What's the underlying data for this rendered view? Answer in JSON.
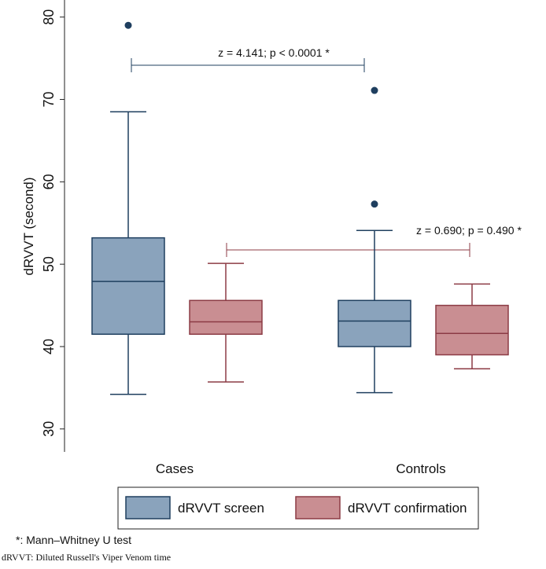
{
  "chart_data": {
    "type": "box",
    "y_label": "dRVVT (second)",
    "categories": [
      "Cases",
      "Controls"
    ],
    "ylim": [
      27.5,
      81.5
    ],
    "yticks": [
      30,
      40,
      50,
      60,
      70,
      80
    ],
    "grid": false,
    "series": [
      {
        "name": "dRVVT screen",
        "color": "#8aa3bc",
        "edge": "#1f3f5f",
        "boxes": [
          {
            "min": 34.2,
            "q1": 41.5,
            "median": 47.9,
            "q3": 53.2,
            "max": 68.5,
            "outliers": [
              79.0
            ]
          },
          {
            "min": 34.4,
            "q1": 40.0,
            "median": 43.1,
            "q3": 45.6,
            "max": 54.1,
            "outliers": [
              71.1,
              57.3
            ]
          }
        ]
      },
      {
        "name": "dRVVT confirmation",
        "color": "#c98e92",
        "edge": "#8c3b45",
        "boxes": [
          {
            "min": 35.7,
            "q1": 41.5,
            "median": 43.0,
            "q3": 45.6,
            "max": 50.1,
            "outliers": []
          },
          {
            "min": 37.3,
            "q1": 39.0,
            "median": 41.6,
            "q3": 45.0,
            "max": 47.6,
            "outliers": []
          }
        ]
      }
    ],
    "annotations": [
      "z = 4.141; p < 0.0001 *",
      "z = 0.690; p = 0.490 *"
    ],
    "footnotes": [
      "*: Mann–Whitney U test",
      "dRVVT: Diluted Russell's Viper Venom time"
    ]
  }
}
